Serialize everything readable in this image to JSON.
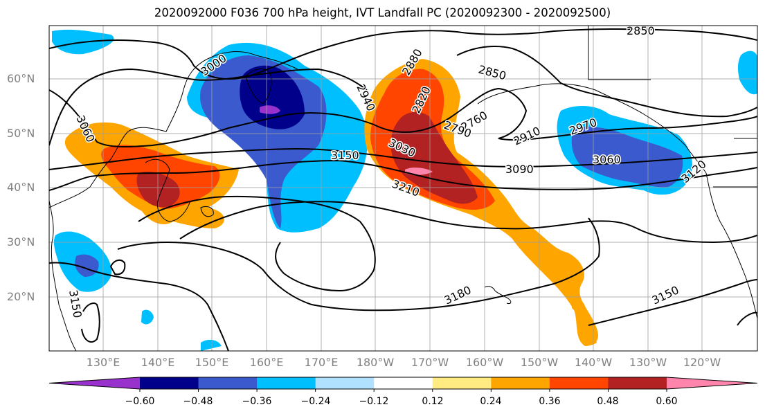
{
  "title": "2020092000 F036 700 hPa height, IVT Landfall PC (2020092300 - 2020092500)",
  "map": {
    "lat_labels": [
      "60°N",
      "50°N",
      "40°N",
      "30°N",
      "20°N"
    ],
    "lon_labels": [
      "130°E",
      "140°E",
      "150°E",
      "160°E",
      "170°E",
      "180°W",
      "170°W",
      "160°W",
      "150°W",
      "140°W",
      "130°W",
      "120°W"
    ],
    "contour_labels": [
      "2850",
      "3000",
      "2880",
      "2850",
      "2940",
      "2820",
      "2760",
      "2790",
      "2910",
      "2970",
      "3060",
      "3030",
      "3150",
      "3090",
      "3060",
      "3120",
      "3210",
      "3180",
      "3150",
      "3150"
    ],
    "gridlines": true
  },
  "colorbar": {
    "tick_labels": [
      "−0.60",
      "−0.48",
      "−0.36",
      "−0.24",
      "−0.12",
      "0.12",
      "0.24",
      "0.36",
      "0.48",
      "0.60"
    ],
    "colors": [
      "#9932cc",
      "#00008b",
      "#3a5acd",
      "#00bfff",
      "#b0e2ff",
      "#ffffff",
      "#ffeb82",
      "#ffa500",
      "#ff4500",
      "#b22222",
      "#ff85ad"
    ],
    "extend": "both"
  }
}
